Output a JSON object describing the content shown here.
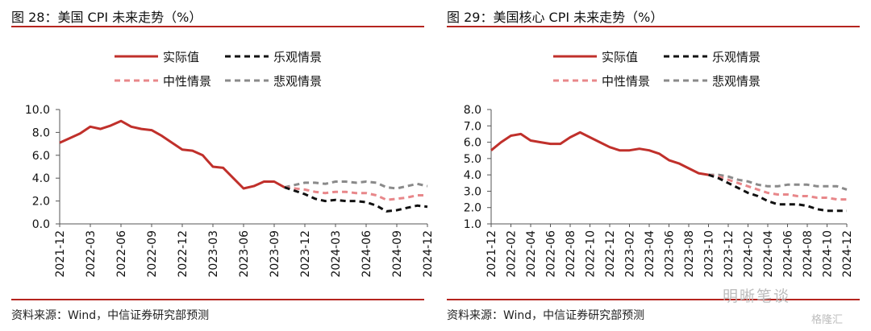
{
  "colors": {
    "title_rule": "#b5251f",
    "actual": "#c0302b",
    "optimistic": "#111111",
    "neutral": "#e8878a",
    "pessimistic": "#8a8a8a"
  },
  "watermark": {
    "text": "明晰笔谈",
    "brand": "格隆汇"
  },
  "chart_data": [
    {
      "type": "line",
      "title": "图 28：美国 CPI 未来走势（%）",
      "source": "资料来源：Wind，中信证券研究部预测",
      "ylim": [
        0,
        10
      ],
      "yticks": [
        "10.0",
        "8.0",
        "6.0",
        "4.0",
        "2.0",
        "0.0"
      ],
      "ytick_values": [
        10,
        8,
        6,
        4,
        2,
        0
      ],
      "xticks": [
        "2021-12",
        "2022-03",
        "2022-06",
        "2022-09",
        "2022-12",
        "2023-03",
        "2023-06",
        "2023-09",
        "2023-12",
        "2024-03",
        "2024-06",
        "2024-09",
        "2024-12"
      ],
      "n_points": 37,
      "legend": [
        "实际值",
        "乐观情景",
        "中性情景",
        "悲观情景"
      ],
      "series": [
        {
          "name": "实际值",
          "start": 0,
          "values": [
            7.1,
            7.5,
            7.9,
            8.5,
            8.3,
            8.6,
            9.0,
            8.5,
            8.3,
            8.2,
            7.7,
            7.1,
            6.5,
            6.4,
            6.0,
            5.0,
            4.9,
            4.0,
            3.1,
            3.3,
            3.7,
            3.7,
            3.2
          ]
        },
        {
          "name": "乐观情景",
          "start": 22,
          "values": [
            3.2,
            2.9,
            2.6,
            2.2,
            2.0,
            2.1,
            2.0,
            2.0,
            1.9,
            1.6,
            1.1,
            1.2,
            1.4,
            1.6,
            1.5
          ]
        },
        {
          "name": "中性情景",
          "start": 22,
          "values": [
            3.2,
            3.1,
            3.0,
            2.8,
            2.7,
            2.8,
            2.8,
            2.7,
            2.7,
            2.5,
            2.1,
            2.2,
            2.3,
            2.5,
            2.5
          ]
        },
        {
          "name": "悲观情景",
          "start": 22,
          "values": [
            3.2,
            3.4,
            3.6,
            3.6,
            3.5,
            3.7,
            3.7,
            3.6,
            3.7,
            3.6,
            3.2,
            3.1,
            3.3,
            3.5,
            3.3
          ]
        }
      ]
    },
    {
      "type": "line",
      "title": "图 29：美国核心 CPI 未来走势（%）",
      "source": "资料来源：Wind，中信证券研究部预测",
      "ylim": [
        1,
        8
      ],
      "yticks": [
        "8.0",
        "7.0",
        "6.0",
        "5.0",
        "4.0",
        "3.0",
        "2.0",
        "1.0"
      ],
      "ytick_values": [
        8,
        7,
        6,
        5,
        4,
        3,
        2,
        1
      ],
      "xticks": [
        "2021-12",
        "2022-02",
        "2022-04",
        "2022-06",
        "2022-08",
        "2022-10",
        "2022-12",
        "2023-02",
        "2023-04",
        "2023-06",
        "2023-08",
        "2023-10",
        "2023-12",
        "2024-02",
        "2024-04",
        "2024-06",
        "2024-08",
        "2024-10",
        "2024-12"
      ],
      "n_points": 37,
      "legend": [
        "实际值",
        "乐观情景",
        "中性情景",
        "悲观情景"
      ],
      "series": [
        {
          "name": "实际值",
          "start": 0,
          "values": [
            5.5,
            6.0,
            6.4,
            6.5,
            6.1,
            6.0,
            5.9,
            5.9,
            6.3,
            6.6,
            6.3,
            6.0,
            5.7,
            5.5,
            5.5,
            5.6,
            5.5,
            5.3,
            4.9,
            4.7,
            4.4,
            4.1,
            4.0
          ]
        },
        {
          "name": "乐观情景",
          "start": 22,
          "values": [
            4.0,
            3.8,
            3.5,
            3.2,
            2.9,
            2.7,
            2.4,
            2.2,
            2.2,
            2.2,
            2.1,
            1.9,
            1.8,
            1.8,
            1.8
          ]
        },
        {
          "name": "中性情景",
          "start": 22,
          "values": [
            4.0,
            3.9,
            3.7,
            3.5,
            3.3,
            3.1,
            2.9,
            2.8,
            2.8,
            2.7,
            2.7,
            2.6,
            2.6,
            2.5,
            2.5
          ]
        },
        {
          "name": "悲观情景",
          "start": 22,
          "values": [
            4.0,
            4.0,
            3.9,
            3.7,
            3.6,
            3.4,
            3.3,
            3.3,
            3.4,
            3.4,
            3.4,
            3.3,
            3.3,
            3.3,
            3.1
          ]
        }
      ]
    }
  ]
}
